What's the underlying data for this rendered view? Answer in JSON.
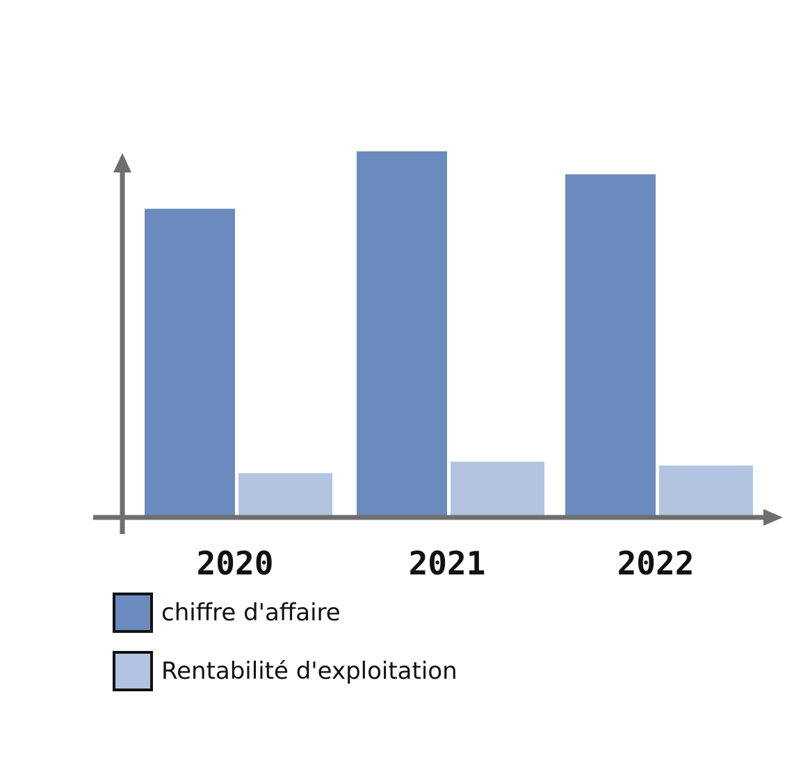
{
  "chart_data": {
    "type": "bar",
    "categories": [
      "2020",
      "2021",
      "2022"
    ],
    "series": [
      {
        "name": "chiffre d'affaire",
        "values": [
          80,
          95,
          89
        ],
        "color": "#6b8bbe"
      },
      {
        "name": "Rentabilité d'exploitation",
        "values": [
          11,
          14,
          13
        ],
        "color": "#b3c4e0"
      }
    ],
    "title": "",
    "xlabel": "",
    "ylabel": "",
    "ylim": [
      0,
      100
    ],
    "grid": false,
    "y_ticks_shown": false,
    "legend_position": "bottom-left",
    "axis_color": "#6e6e6e"
  }
}
